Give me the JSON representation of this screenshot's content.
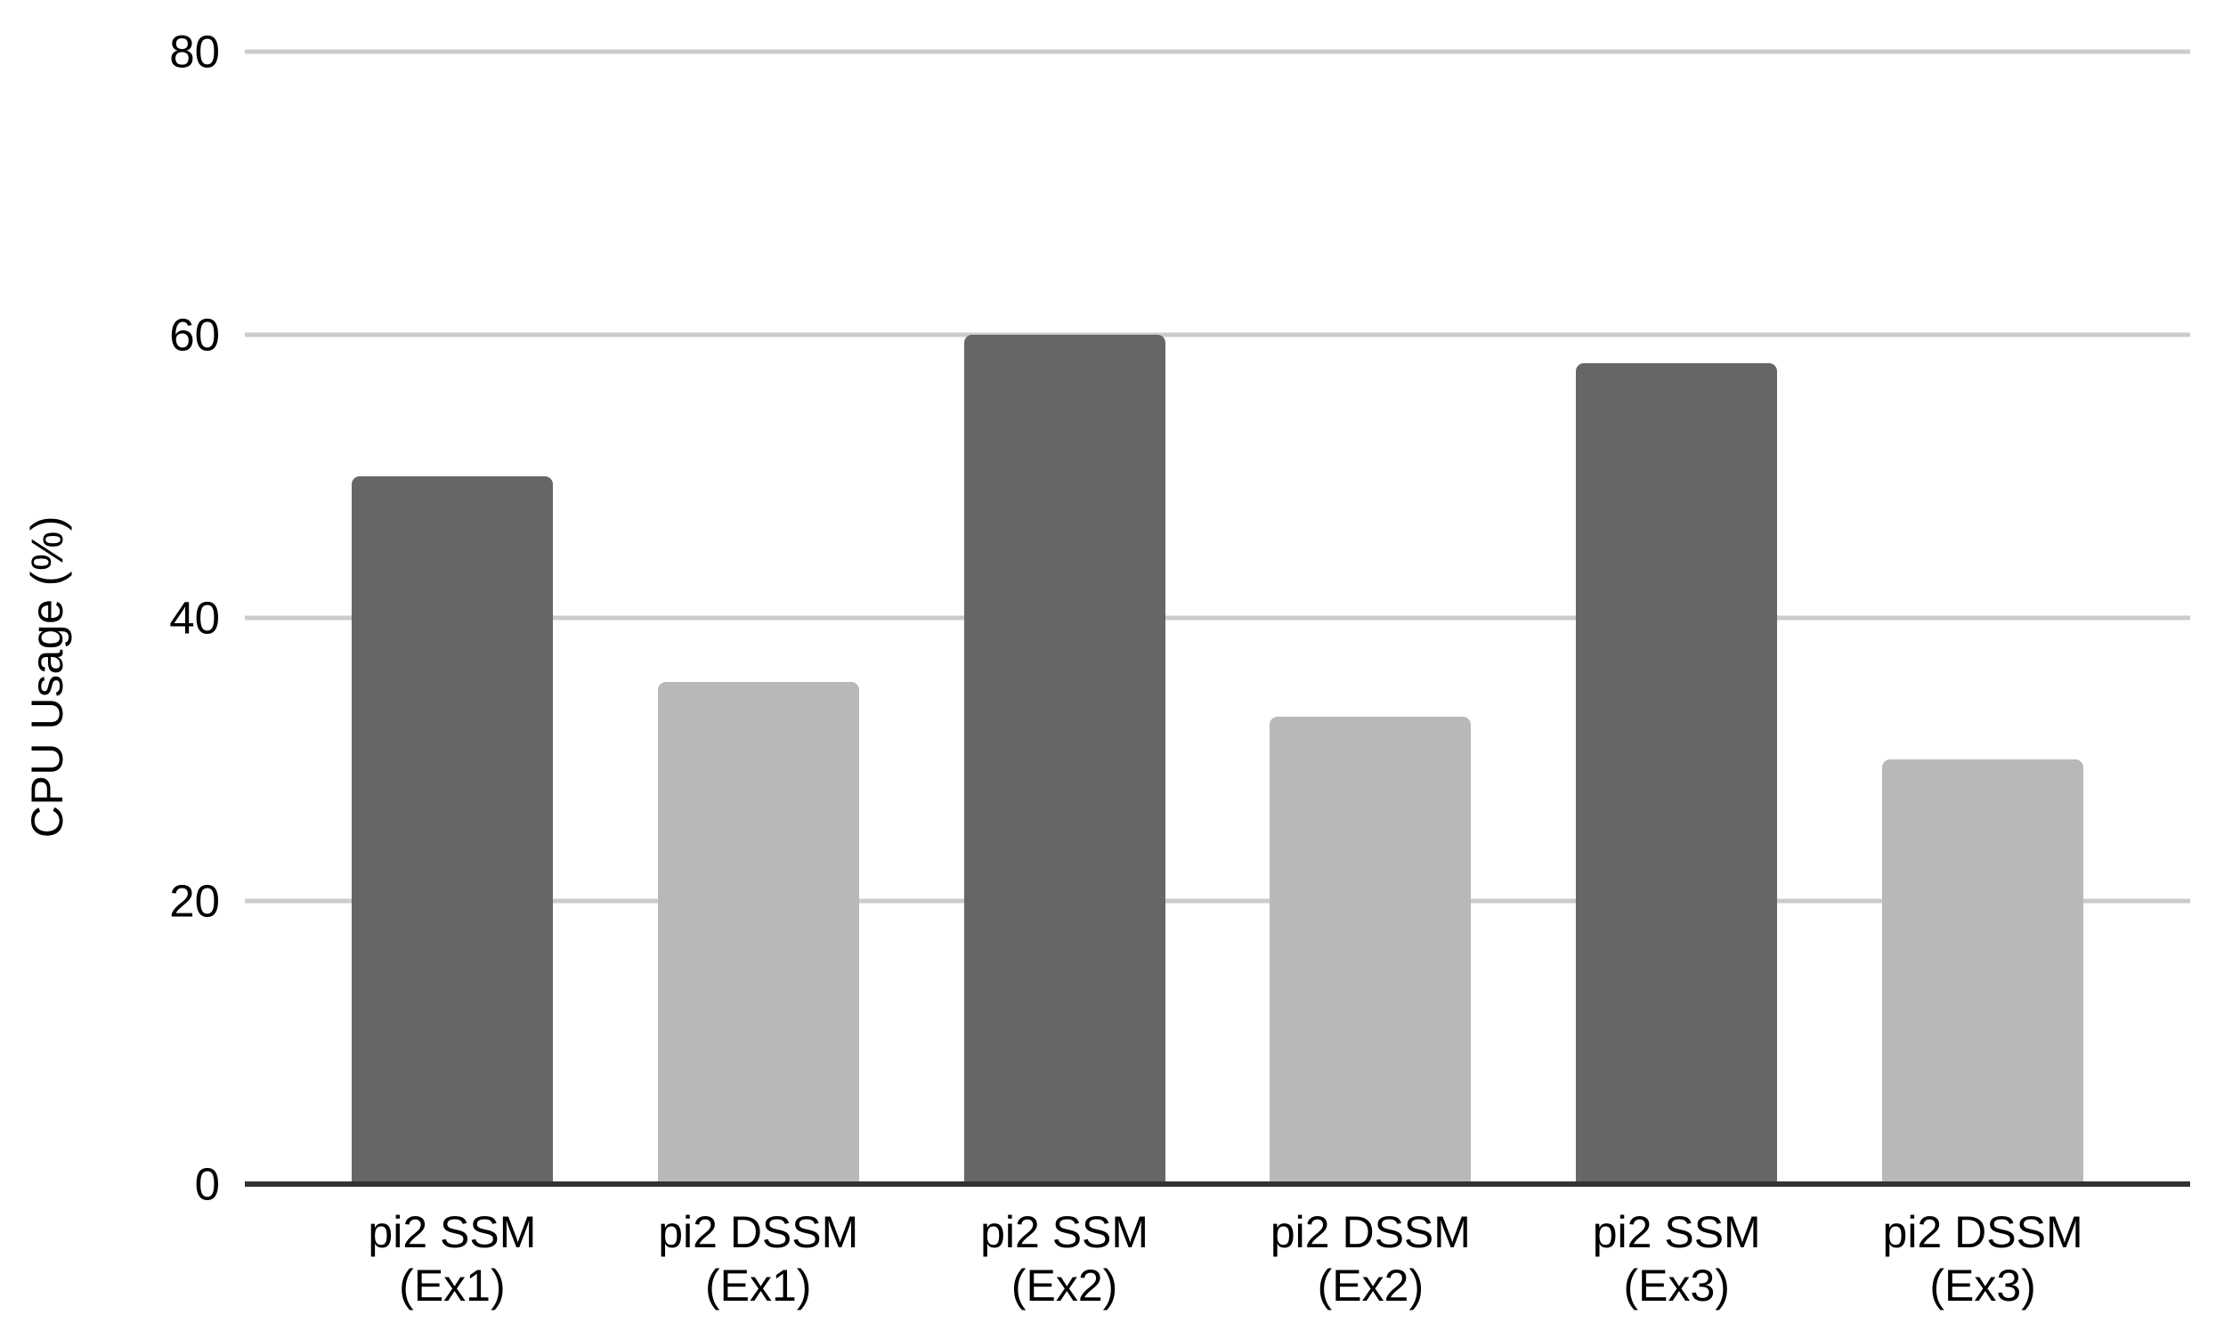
{
  "chart_data": {
    "type": "bar",
    "title": "",
    "xlabel": "",
    "ylabel": "CPU Usage (%)",
    "ylim": [
      0,
      80
    ],
    "y_ticks": [
      80,
      60,
      40,
      20,
      0
    ],
    "grid": "horizontal",
    "legend": "none",
    "categories": [
      "pi2 SSM\n(Ex1)",
      "pi2 DSSM\n(Ex1)",
      "pi2 SSM\n(Ex2)",
      "pi2 DSSM\n(Ex2)",
      "pi2 SSM\n(Ex3)",
      "pi2 DSSM\n(Ex3)"
    ],
    "values": [
      50,
      35.5,
      60,
      33,
      58,
      30
    ],
    "bar_colors": [
      "#666666",
      "#b8b8b8",
      "#666666",
      "#b8b8b8",
      "#666666",
      "#b8b8b8"
    ]
  },
  "colors": {
    "bar_dark": "#666666",
    "bar_light": "#b8b8b8",
    "gridline": "#cccccc",
    "axis_line": "#333333",
    "text": "#000000",
    "background": "#ffffff"
  }
}
